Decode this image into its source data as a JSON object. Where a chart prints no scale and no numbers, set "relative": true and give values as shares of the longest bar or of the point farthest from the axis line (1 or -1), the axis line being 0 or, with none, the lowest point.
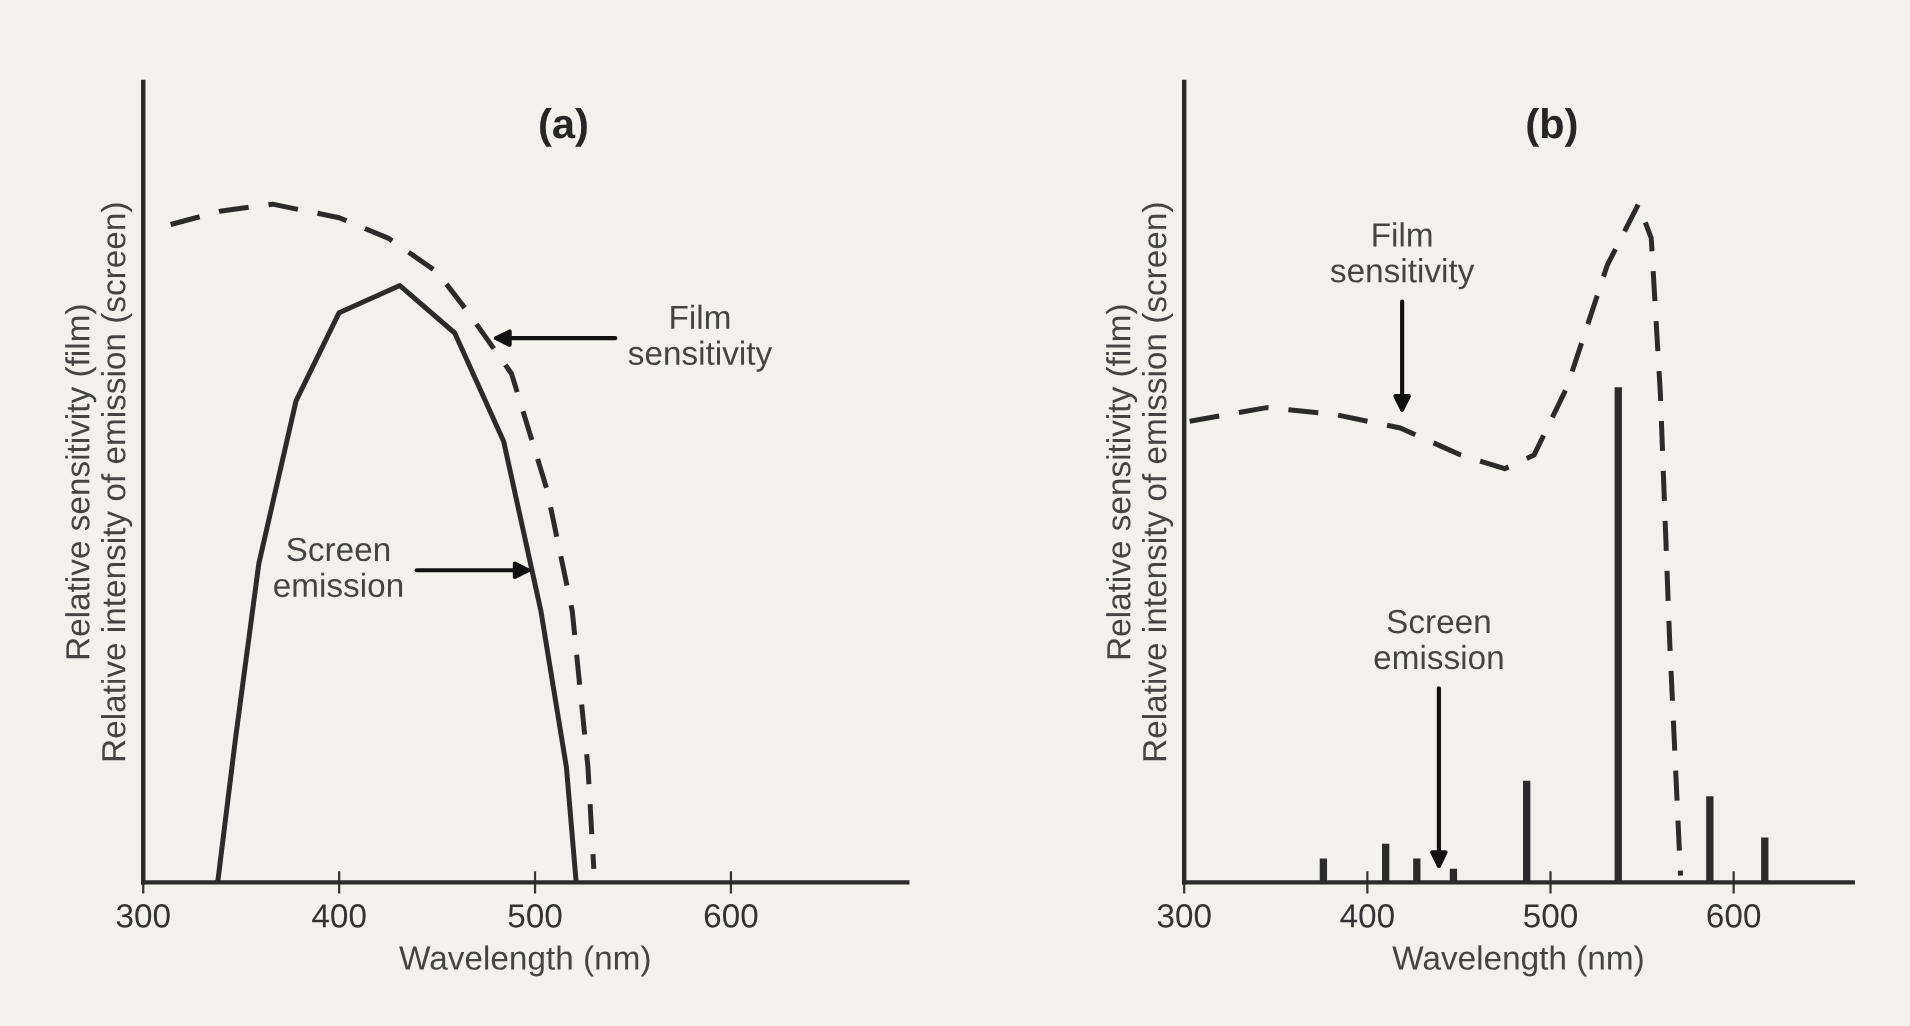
{
  "chart_data": [
    {
      "type": "line",
      "title": "(a)",
      "xlabel": "Wavelength (nm)",
      "ylabel": "Relative sensitivity (film)\nRelative intensity of emission (screen)",
      "relative": true,
      "xlim": [
        300,
        690
      ],
      "xticks": [
        300,
        400,
        500,
        600
      ],
      "tick_labels": "x",
      "series": [
        {
          "line_style": "dashed",
          "color": "#2b2b2b",
          "x": [
            314,
            340,
            366,
            400,
            425,
            450,
            466,
            488,
            506,
            519,
            527,
            530
          ],
          "values": [
            0.97,
            0.99,
            1.0,
            0.98,
            0.95,
            0.9,
            0.84,
            0.75,
            0.58,
            0.4,
            0.17,
            0.02
          ]
        },
        {
          "line_style": "solid",
          "color": "#2b2b2b",
          "x": [
            338,
            347,
            359,
            378,
            400,
            431,
            459,
            484,
            503,
            516,
            521
          ],
          "values": [
            0,
            0.21,
            0.47,
            0.71,
            0.84,
            0.88,
            0.81,
            0.65,
            0.4,
            0.17,
            0
          ]
        }
      ],
      "annotations": [
        "Film\nsensitivity",
        "Screen\nemission"
      ]
    },
    {
      "type": "line",
      "title": "(b)",
      "xlabel": "Wavelength (nm)",
      "ylabel": "Relative sensitivity (film)\nRelative intensity of emission (screen)",
      "relative": true,
      "xlim": [
        300,
        665
      ],
      "xticks": [
        300,
        400,
        500,
        600
      ],
      "tick_labels": "x",
      "series": [
        {
          "line_style": "dashed",
          "color": "#2b2b2b",
          "x": [
            303,
            345,
            382,
            418,
            451,
            475,
            491,
            509,
            531,
            548,
            555,
            560,
            565,
            571
          ],
          "values": [
            0.68,
            0.7,
            0.69,
            0.67,
            0.63,
            0.61,
            0.63,
            0.73,
            0.91,
            1.0,
            0.95,
            0.72,
            0.36,
            0.01
          ]
        },
        {
          "type": "bar",
          "color": "#2b2b2b",
          "x": [
            376,
            410,
            427,
            447,
            487,
            537,
            587,
            617
          ],
          "values": [
            0.035,
            0.057,
            0.035,
            0.02,
            0.15,
            0.73,
            0.127,
            0.066
          ]
        }
      ],
      "annotations": [
        "Film\nsensitivity",
        "Screen\nemission"
      ]
    }
  ]
}
